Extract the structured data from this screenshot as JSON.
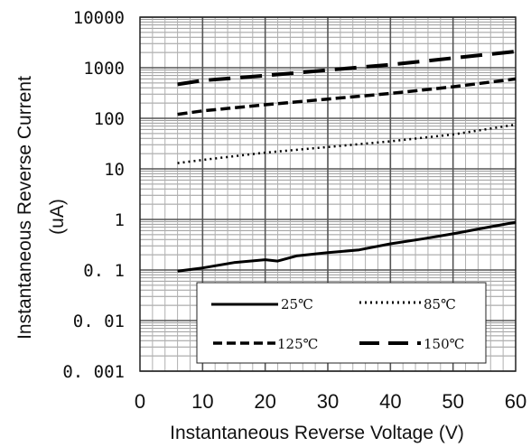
{
  "chart_data": {
    "type": "line",
    "xlabel": "Instantaneous Reverse Voltage (V)",
    "ylabel": "Instantaneous Reverse Current",
    "ylabel_unit": "(uA)",
    "xlim": [
      0,
      60
    ],
    "ylim": [
      0.001,
      10000
    ],
    "yscale": "log",
    "x_ticks": [
      "0",
      "10",
      "20",
      "30",
      "40",
      "50",
      "60"
    ],
    "y_ticks": [
      "0. 001",
      "0. 01",
      "0. 1",
      "1",
      "10",
      "100",
      "1000",
      "10000"
    ],
    "grid": true,
    "legend_position": "bottom-right",
    "series": [
      {
        "name": "25℃",
        "style": "solid",
        "x": [
          6,
          10,
          15,
          20,
          22,
          25,
          30,
          35,
          40,
          45,
          50,
          55,
          60
        ],
        "y": [
          0.095,
          0.11,
          0.14,
          0.16,
          0.15,
          0.19,
          0.22,
          0.25,
          0.33,
          0.41,
          0.52,
          0.68,
          0.88
        ]
      },
      {
        "name": "85℃",
        "style": "dotted",
        "x": [
          6,
          10,
          20,
          30,
          40,
          50,
          60
        ],
        "y": [
          13,
          15,
          21,
          27,
          35,
          48,
          75
        ]
      },
      {
        "name": "125℃",
        "style": "dashed",
        "x": [
          6,
          10,
          20,
          30,
          40,
          50,
          60
        ],
        "y": [
          120,
          140,
          185,
          240,
          310,
          420,
          600
        ]
      },
      {
        "name": "150℃",
        "style": "longdash",
        "x": [
          6,
          10,
          20,
          30,
          40,
          50,
          60
        ],
        "y": [
          470,
          560,
          700,
          900,
          1150,
          1550,
          2100
        ]
      }
    ]
  }
}
